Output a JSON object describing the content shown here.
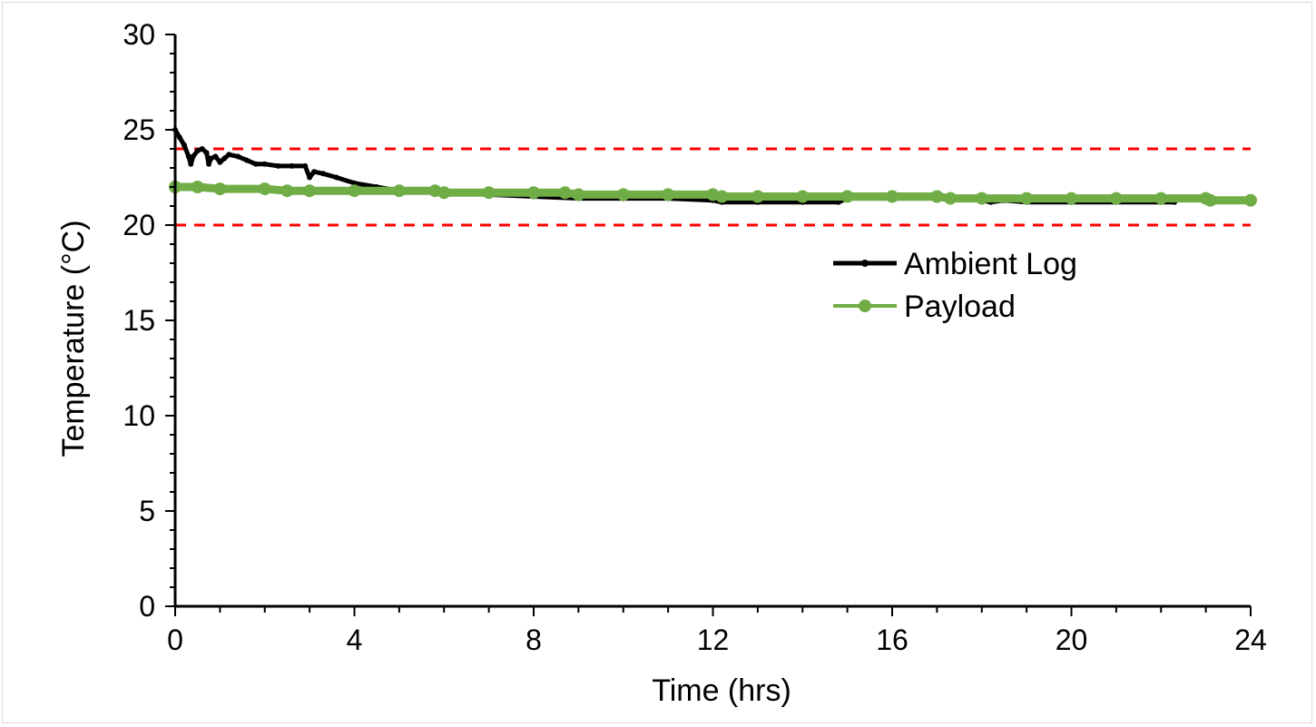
{
  "chart_data": {
    "type": "line",
    "title": "",
    "xlabel": "Time (hrs)",
    "ylabel": "Temperature (°C)",
    "xlim": [
      0,
      24
    ],
    "ylim": [
      0,
      30
    ],
    "x_ticks": [
      0,
      4,
      8,
      12,
      16,
      20,
      24
    ],
    "y_ticks": [
      0,
      5,
      10,
      15,
      20,
      25,
      30
    ],
    "grid": false,
    "legend_position": "right",
    "reference_lines": [
      {
        "y": 24,
        "style": "dashed",
        "color": "#ff0000"
      },
      {
        "y": 20,
        "style": "dashed",
        "color": "#ff0000"
      }
    ],
    "series": [
      {
        "name": "Ambient Log",
        "color": "#000000",
        "x": [
          0,
          0.1,
          0.2,
          0.3,
          0.35,
          0.4,
          0.5,
          0.6,
          0.7,
          0.75,
          0.8,
          0.9,
          1.0,
          1.1,
          1.2,
          1.4,
          1.6,
          1.8,
          2.0,
          2.3,
          2.6,
          2.9,
          3.0,
          3.1,
          3.3,
          3.6,
          4.0,
          4.5,
          5.0,
          6.0,
          7.0,
          8.0,
          9.0,
          10.0,
          11.0,
          12.0,
          12.2,
          13.0,
          14.0,
          14.8,
          15.0,
          16.0,
          17.0,
          18.0,
          18.2,
          18.5,
          19.0,
          20.0,
          21.0,
          22.0,
          22.3
        ],
        "y": [
          25.0,
          24.6,
          24.2,
          23.6,
          23.2,
          23.6,
          23.9,
          24.0,
          23.8,
          23.2,
          23.5,
          23.6,
          23.3,
          23.5,
          23.7,
          23.6,
          23.4,
          23.2,
          23.2,
          23.1,
          23.1,
          23.1,
          22.5,
          22.8,
          22.7,
          22.5,
          22.2,
          22.0,
          21.8,
          21.7,
          21.6,
          21.5,
          21.4,
          21.4,
          21.4,
          21.3,
          21.2,
          21.2,
          21.2,
          21.2,
          21.4,
          21.4,
          21.4,
          21.3,
          21.2,
          21.3,
          21.2,
          21.2,
          21.2,
          21.2,
          21.2
        ]
      },
      {
        "name": "Payload",
        "color": "#70ad47",
        "x": [
          0,
          0.5,
          1.0,
          2.0,
          2.5,
          3.0,
          4.0,
          5.0,
          5.8,
          6.0,
          7.0,
          8.0,
          8.7,
          9.0,
          10.0,
          11.0,
          12.0,
          12.2,
          13.0,
          14.0,
          15.0,
          16.0,
          17.0,
          17.3,
          18.0,
          19.0,
          20.0,
          21.0,
          22.0,
          23.0,
          23.1,
          24.0
        ],
        "y": [
          22.0,
          22.0,
          21.9,
          21.9,
          21.8,
          21.8,
          21.8,
          21.8,
          21.8,
          21.7,
          21.7,
          21.7,
          21.7,
          21.6,
          21.6,
          21.6,
          21.6,
          21.5,
          21.5,
          21.5,
          21.5,
          21.5,
          21.5,
          21.4,
          21.4,
          21.4,
          21.4,
          21.4,
          21.4,
          21.4,
          21.3,
          21.3
        ]
      }
    ]
  }
}
